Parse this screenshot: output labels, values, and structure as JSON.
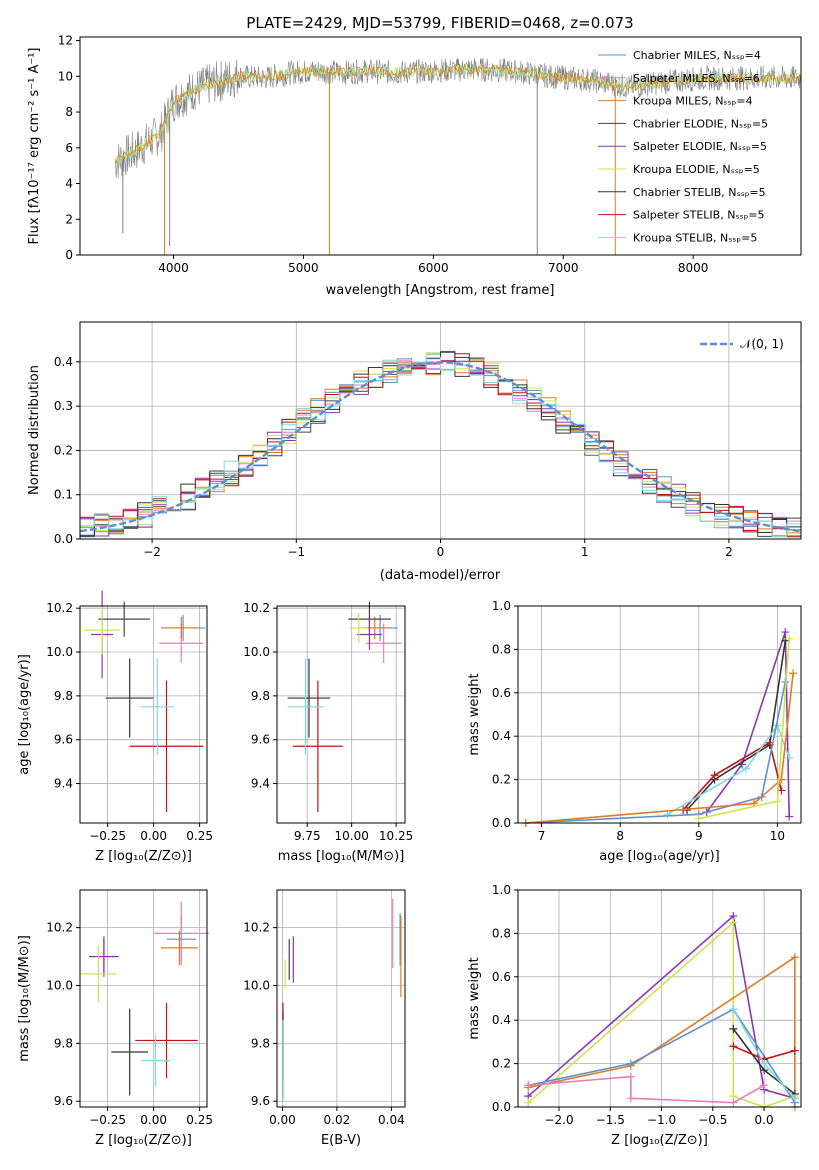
{
  "title": "PLATE=2429, MJD=53799, FIBERID=0468, z=0.073",
  "colors": {
    "Chabrier MILES": "#5e8fd0",
    "Salpeter MILES": "#e57fb8",
    "Kroupa MILES": "#e07b20",
    "Chabrier ELODIE": "#444444",
    "Salpeter ELODIE": "#8e35b0",
    "Kroupa ELODIE": "#cfe34f",
    "Chabrier STELIB": "#333333",
    "Salpeter STELIB": "#c01515",
    "Kroupa STELIB": "#7fd8e0",
    "data": "#808080",
    "normal": "#5b8fd6",
    "olive": "#6e9a20"
  },
  "spectrum": {
    "xlabel": "wavelength [Angstrom, rest frame]",
    "ylabel": "Flux [fλ10⁻¹⁷ erg cm⁻² s⁻¹ A⁻¹]",
    "xticks": [
      "4000",
      "5000",
      "6000",
      "7000",
      "8000"
    ],
    "yticks": [
      "0",
      "2",
      "4",
      "6",
      "8",
      "10",
      "12"
    ],
    "legend": [
      "Chabrier MILES, Nₛₛₚ=4",
      "Salpeter MILES, Nₛₛₚ=6",
      "Kroupa MILES, Nₛₛₚ=4",
      "Chabrier ELODIE, Nₛₛₚ=5",
      "Salpeter ELODIE, Nₛₛₚ=5",
      "Kroupa ELODIE, Nₛₛₚ=5",
      "Chabrier STELIB, Nₛₛₚ=5",
      "Salpeter STELIB, Nₛₛₚ=5",
      "Kroupa STELIB, Nₛₛₚ=5"
    ]
  },
  "histogram": {
    "xlabel": "(data-model)/error",
    "ylabel": "Normed distribution",
    "xticks": [
      "−2",
      "−1",
      "0",
      "1",
      "2"
    ],
    "yticks": [
      "0.0",
      "0.1",
      "0.2",
      "0.3",
      "0.4"
    ],
    "legend": "𝒩(0, 1)"
  },
  "panels": {
    "age_z": {
      "xlabel": "Z [log₁₀(Z/Z⊙)]",
      "ylabel": "age  [log₁₀(age/yr)]",
      "xticks": [
        "−0.25",
        "0.00",
        "0.25"
      ],
      "yticks": [
        "9.4",
        "9.6",
        "9.8",
        "10.0",
        "10.2"
      ]
    },
    "age_mass": {
      "xlabel": "mass [log₁₀(M/M⊙)]",
      "xticks": [
        "9.75",
        "10.00",
        "10.25"
      ],
      "yticks": [
        "9.4",
        "9.6",
        "9.8",
        "10.0",
        "10.2"
      ]
    },
    "mw_age": {
      "xlabel": "age  [log₁₀(age/yr)]",
      "ylabel": "mass weight",
      "xticks": [
        "7",
        "8",
        "9",
        "10"
      ],
      "yticks": [
        "0.0",
        "0.2",
        "0.4",
        "0.6",
        "0.8",
        "1.0"
      ]
    },
    "mass_z": {
      "xlabel": "Z [log₁₀(Z/Z⊙)]",
      "ylabel": "mass [log₁₀(M/M⊙)]",
      "xticks": [
        "−0.25",
        "0.00",
        "0.25"
      ],
      "yticks": [
        "9.6",
        "9.8",
        "10.0",
        "10.2"
      ]
    },
    "mass_ebv": {
      "xlabel": "E(B-V)",
      "xticks": [
        "0.00",
        "0.02",
        "0.04"
      ],
      "yticks": [
        "9.6",
        "9.8",
        "10.0",
        "10.2"
      ]
    },
    "mw_z": {
      "xlabel": "Z [log₁₀(Z/Z⊙)]",
      "ylabel": "mass weight",
      "xticks": [
        "−2.0",
        "−1.5",
        "−1.0",
        "−0.5",
        "0.0"
      ],
      "yticks": [
        "0.0",
        "0.2",
        "0.4",
        "0.6",
        "0.8",
        "1.0"
      ]
    }
  },
  "chart_data": [
    {
      "type": "line",
      "title": "PLATE=2429, MJD=53799, FIBERID=0468, z=0.073",
      "xlabel": "wavelength [Angstrom, rest frame]",
      "ylabel": "Flux [fλ10⁻¹⁷ erg cm⁻² s⁻¹ A⁻¹]",
      "xlim": [
        3280,
        8830
      ],
      "ylim": [
        0,
        12.2
      ],
      "x": [
        3550,
        3700,
        3900,
        4000,
        4150,
        4300,
        4500,
        4700,
        4900,
        5100,
        5300,
        5500,
        5700,
        6000,
        6300,
        6600,
        6900,
        7200,
        7500,
        7800,
        8100,
        8500,
        8830
      ],
      "series": [
        {
          "name": "Chabrier MILES",
          "values": [
            5.2,
            5.8,
            6.8,
            8.6,
            9.2,
            9.6,
            10.0,
            9.9,
            10.2,
            10.3,
            10.2,
            10.3,
            10.2,
            10.3,
            10.4,
            10.3,
            10.0,
            9.8,
            9.4,
            9.7,
            9.9,
            9.9,
            9.9
          ]
        }
      ],
      "legend": [
        "Chabrier MILES, Nₛₛₚ=4",
        "Salpeter MILES, Nₛₛₚ=6",
        "Kroupa MILES, Nₛₛₚ=4",
        "Chabrier ELODIE, Nₛₛₚ=5",
        "Salpeter ELODIE, Nₛₛₚ=5",
        "Kroupa ELODIE, Nₛₛₚ=5",
        "Chabrier STELIB, Nₛₛₚ=5",
        "Salpeter STELIB, Nₛₛₚ=5",
        "Kroupa STELIB, Nₛₛₚ=5"
      ]
    },
    {
      "type": "line",
      "xlabel": "(data-model)/error",
      "ylabel": "Normed distribution",
      "xlim": [
        -2.5,
        2.5
      ],
      "ylim": [
        0,
        0.49
      ],
      "x": [
        -2.5,
        -2.25,
        -2.0,
        -1.75,
        -1.5,
        -1.25,
        -1.0,
        -0.75,
        -0.5,
        -0.25,
        0.0,
        0.25,
        0.5,
        0.75,
        1.0,
        1.25,
        1.5,
        1.75,
        2.0,
        2.25,
        2.5
      ],
      "series": [
        {
          "name": "𝒩(0, 1)",
          "values": [
            0.018,
            0.032,
            0.054,
            0.086,
            0.13,
            0.183,
            0.242,
            0.301,
            0.352,
            0.387,
            0.399,
            0.387,
            0.352,
            0.301,
            0.242,
            0.183,
            0.13,
            0.086,
            0.054,
            0.032,
            0.018
          ]
        }
      ],
      "histogram_approx": [
        0.025,
        0.03,
        0.04,
        0.05,
        0.07,
        0.1,
        0.14,
        0.19,
        0.25,
        0.3,
        0.34,
        0.36,
        0.37,
        0.39,
        0.41,
        0.42,
        0.41,
        0.39,
        0.36,
        0.33,
        0.28,
        0.23,
        0.17,
        0.12,
        0.08,
        0.06,
        0.04
      ]
    },
    {
      "type": "scatter",
      "xlabel": "Z [log₁₀(Z/Z⊙)]",
      "ylabel": "age  [log₁₀(age/yr)]",
      "xlim": [
        -0.4,
        0.29
      ],
      "ylim": [
        9.22,
        10.21
      ],
      "points": [
        {
          "name": "Chabrier MILES",
          "x": 0.16,
          "y": 10.11,
          "xerr": 0.12,
          "yerr": 0.06
        },
        {
          "name": "Salpeter MILES",
          "x": 0.15,
          "y": 10.04,
          "xerr": 0.12,
          "yerr": 0.09
        },
        {
          "name": "Kroupa MILES",
          "x": 0.15,
          "y": 10.11,
          "xerr": 0.1,
          "yerr": 0.05
        },
        {
          "name": "Chabrier ELODIE",
          "x": -0.16,
          "y": 10.15,
          "xerr": 0.14,
          "yerr": 0.08
        },
        {
          "name": "Salpeter ELODIE",
          "x": -0.28,
          "y": 10.08,
          "xerr": 0.06,
          "yerr": 0.2
        },
        {
          "name": "Kroupa ELODIE",
          "x": -0.28,
          "y": 10.1,
          "xerr": 0.1,
          "yerr": 0.11
        },
        {
          "name": "Chabrier STELIB",
          "x": -0.13,
          "y": 9.79,
          "xerr": 0.13,
          "yerr": 0.18
        },
        {
          "name": "Salpeter STELIB",
          "x": 0.07,
          "y": 9.57,
          "xerr": 0.2,
          "yerr": 0.3
        },
        {
          "name": "Kroupa STELIB",
          "x": 0.02,
          "y": 9.75,
          "xerr": 0.09,
          "yerr": 0.22
        }
      ]
    },
    {
      "type": "scatter",
      "xlabel": "mass [log₁₀(M/M⊙)]",
      "xlim": [
        9.58,
        10.3
      ],
      "ylim": [
        9.22,
        10.21
      ],
      "points": [
        {
          "name": "Chabrier MILES",
          "x": 10.16,
          "y": 10.11,
          "xerr": 0.1,
          "yerr": 0.06
        },
        {
          "name": "Salpeter MILES",
          "x": 10.18,
          "y": 10.04,
          "xerr": 0.1,
          "yerr": 0.09
        },
        {
          "name": "Kroupa MILES",
          "x": 10.13,
          "y": 10.11,
          "xerr": 0.08,
          "yerr": 0.05
        },
        {
          "name": "Chabrier ELODIE",
          "x": 10.1,
          "y": 10.15,
          "xerr": 0.12,
          "yerr": 0.08
        },
        {
          "name": "Salpeter ELODIE",
          "x": 10.1,
          "y": 10.08,
          "xerr": 0.07,
          "yerr": 0.07
        },
        {
          "name": "Kroupa ELODIE",
          "x": 10.04,
          "y": 10.11,
          "xerr": 0.05,
          "yerr": 0.07
        },
        {
          "name": "Chabrier STELIB",
          "x": 9.76,
          "y": 9.79,
          "xerr": 0.12,
          "yerr": 0.18
        },
        {
          "name": "Salpeter STELIB",
          "x": 9.81,
          "y": 9.57,
          "xerr": 0.14,
          "yerr": 0.3
        },
        {
          "name": "Kroupa STELIB",
          "x": 9.74,
          "y": 9.75,
          "xerr": 0.1,
          "yerr": 0.22
        }
      ]
    },
    {
      "type": "line",
      "xlabel": "age  [log₁₀(age/yr)]",
      "ylabel": "mass weight",
      "xlim": [
        6.7,
        10.3
      ],
      "ylim": [
        0,
        1.0
      ],
      "series": [
        {
          "name": "Salpeter ELODIE",
          "x": [
            9.1,
            9.55,
            10.1,
            10.15
          ],
          "values": [
            0.05,
            0.27,
            0.88,
            0.03
          ]
        },
        {
          "name": "Chabrier STELIB",
          "x": [
            8.85,
            9.2,
            9.9,
            10.1
          ],
          "values": [
            0.06,
            0.2,
            0.36,
            0.84
          ]
        },
        {
          "name": "Salpeter STELIB",
          "x": [
            8.8,
            9.2,
            9.9,
            10.05
          ],
          "values": [
            0.06,
            0.22,
            0.37,
            0.15
          ]
        },
        {
          "name": "Kroupa STELIB",
          "x": [
            8.6,
            9.6,
            10.0,
            10.15
          ],
          "values": [
            0.04,
            0.25,
            0.45,
            0.3
          ]
        },
        {
          "name": "Chabrier MILES",
          "x": [
            6.8,
            9.0,
            9.8,
            10.1
          ],
          "values": [
            0.0,
            0.04,
            0.12,
            0.65
          ]
        },
        {
          "name": "Kroupa MILES",
          "x": [
            6.8,
            9.7,
            10.05,
            10.2
          ],
          "values": [
            0.0,
            0.09,
            0.2,
            0.69
          ]
        },
        {
          "name": "Kroupa ELODIE",
          "x": [
            9.0,
            10.0,
            10.15
          ],
          "values": [
            0.02,
            0.1,
            0.85
          ]
        }
      ]
    },
    {
      "type": "scatter",
      "xlabel": "Z [log₁₀(Z/Z⊙)]",
      "ylabel": "mass [log₁₀(M/M⊙)]",
      "xlim": [
        -0.4,
        0.29
      ],
      "ylim": [
        9.58,
        10.33
      ],
      "points": [
        {
          "name": "Chabrier MILES",
          "x": 0.15,
          "y": 10.16,
          "xerr": 0.08,
          "yerr": 0.08
        },
        {
          "name": "Salpeter MILES",
          "x": 0.15,
          "y": 10.18,
          "xerr": 0.15,
          "yerr": 0.11
        },
        {
          "name": "Kroupa MILES",
          "x": 0.14,
          "y": 10.13,
          "xerr": 0.1,
          "yerr": 0.06
        },
        {
          "name": "Chabrier ELODIE",
          "x": -0.27,
          "y": 10.1,
          "xerr": 0.08,
          "yerr": 0.06
        },
        {
          "name": "Salpeter ELODIE",
          "x": -0.27,
          "y": 10.1,
          "xerr": 0.07,
          "yerr": 0.07
        },
        {
          "name": "Kroupa ELODIE",
          "x": -0.3,
          "y": 10.04,
          "xerr": 0.1,
          "yerr": 0.1
        },
        {
          "name": "Chabrier STELIB",
          "x": -0.13,
          "y": 9.77,
          "xerr": 0.1,
          "yerr": 0.15
        },
        {
          "name": "Salpeter STELIB",
          "x": 0.07,
          "y": 9.81,
          "xerr": 0.17,
          "yerr": 0.13
        },
        {
          "name": "Kroupa STELIB",
          "x": 0.01,
          "y": 9.74,
          "xerr": 0.08,
          "yerr": 0.09
        }
      ]
    },
    {
      "type": "scatter",
      "xlabel": "E(B-V)",
      "xlim": [
        -0.002,
        0.045
      ],
      "ylim": [
        9.58,
        10.33
      ],
      "points": [
        {
          "name": "Chabrier MILES",
          "x": 0.0432,
          "y": 10.16,
          "yerr": 0.09
        },
        {
          "name": "Salpeter MILES",
          "x": 0.0405,
          "y": 10.18,
          "yerr": 0.12
        },
        {
          "name": "Kroupa MILES",
          "x": 0.0435,
          "y": 10.1,
          "yerr": 0.14
        },
        {
          "name": "Chabrier ELODIE",
          "x": 0.0025,
          "y": 10.09,
          "yerr": 0.07
        },
        {
          "name": "Salpeter ELODIE",
          "x": 0.004,
          "y": 10.09,
          "yerr": 0.08
        },
        {
          "name": "Kroupa ELODIE",
          "x": 0.001,
          "y": 10.04,
          "yerr": 0.05
        },
        {
          "name": "Chabrier STELIB",
          "x": 0.0002,
          "y": 9.76,
          "yerr": 0.15
        },
        {
          "name": "Salpeter STELIB",
          "x": 0.0002,
          "y": 9.81,
          "yerr": 0.13
        },
        {
          "name": "Kroupa STELIB",
          "x": 0.0002,
          "y": 9.74,
          "yerr": 0.14
        }
      ]
    },
    {
      "type": "line",
      "xlabel": "Z [log₁₀(Z/Z⊙)]",
      "ylabel": "mass weight",
      "xlim": [
        -2.4,
        0.36
      ],
      "ylim": [
        0,
        1.0
      ],
      "series": [
        {
          "name": "Salpeter ELODIE",
          "x": [
            -2.3,
            -0.3,
            0.0,
            0.3
          ],
          "values": [
            0.05,
            0.88,
            0.08,
            0.04
          ]
        },
        {
          "name": "Kroupa ELODIE",
          "x": [
            -2.3,
            -0.3,
            -0.3,
            0.0,
            0.3
          ],
          "values": [
            0.02,
            0.85,
            0.05,
            0.0,
            0.05
          ]
        },
        {
          "name": "Kroupa MILES",
          "x": [
            -2.3,
            -1.3,
            0.3,
            0.3
          ],
          "values": [
            0.09,
            0.19,
            0.69,
            0.0
          ]
        },
        {
          "name": "Chabrier MILES",
          "x": [
            -2.3,
            -1.3,
            -0.3,
            0.3
          ],
          "values": [
            0.1,
            0.2,
            0.45,
            0.02
          ]
        },
        {
          "name": "Salpeter MILES",
          "x": [
            -2.3,
            -1.3,
            -1.3,
            -0.3,
            0.0
          ],
          "values": [
            0.1,
            0.14,
            0.04,
            0.02,
            0.1
          ]
        },
        {
          "name": "Chabrier STELIB",
          "x": [
            -0.3,
            0.0,
            0.3
          ],
          "values": [
            0.36,
            0.17,
            0.06
          ]
        },
        {
          "name": "Salpeter STELIB",
          "x": [
            -0.3,
            0.0,
            0.3
          ],
          "values": [
            0.28,
            0.22,
            0.26
          ]
        },
        {
          "name": "Kroupa STELIB",
          "x": [
            -0.3,
            0.0,
            0.3
          ],
          "values": [
            0.45,
            0.2,
            0.04
          ]
        }
      ]
    }
  ]
}
